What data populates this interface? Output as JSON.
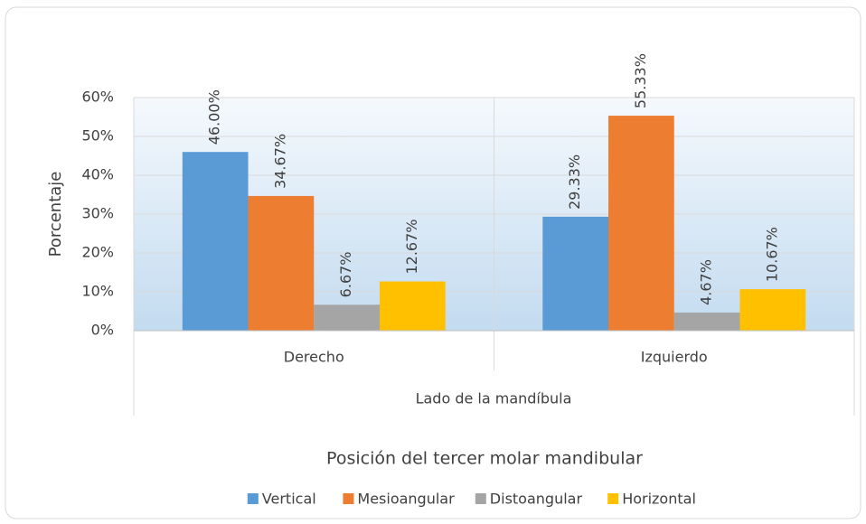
{
  "chart_data": {
    "type": "bar",
    "y_label": "Porcentaje",
    "x_label": "Lado de la mandíbula",
    "legend_title": "Posición del tercer molar mandibular",
    "categories": [
      "Derecho",
      "Izquierdo"
    ],
    "series": [
      {
        "name": "Vertical",
        "color": "#5b9bd5",
        "values": [
          46.0,
          29.33
        ],
        "value_labels": [
          "46.00%",
          "29.33%"
        ]
      },
      {
        "name": "Mesioangular",
        "color": "#ed7d31",
        "values": [
          34.67,
          55.33
        ],
        "value_labels": [
          "34.67%",
          "55.33%"
        ]
      },
      {
        "name": "Distoangular",
        "color": "#a5a5a5",
        "values": [
          6.67,
          4.67
        ],
        "value_labels": [
          "6.67%",
          "4.67%"
        ]
      },
      {
        "name": "Horizontal",
        "color": "#ffc000",
        "values": [
          12.67,
          10.67
        ],
        "value_labels": [
          "12.67%",
          "10.67%"
        ]
      }
    ],
    "ylim": [
      0,
      60
    ],
    "yticks": [
      {
        "value": 0,
        "label": "0%"
      },
      {
        "value": 10,
        "label": "10%"
      },
      {
        "value": 20,
        "label": "20%"
      },
      {
        "value": 30,
        "label": "30%"
      },
      {
        "value": 40,
        "label": "40%"
      },
      {
        "value": 50,
        "label": "50%"
      },
      {
        "value": 60,
        "label": "60%"
      }
    ],
    "grid": true,
    "legend": "bottom"
  }
}
